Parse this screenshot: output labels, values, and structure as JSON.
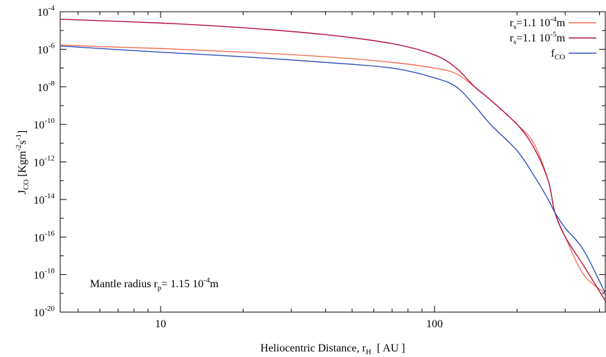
{
  "chart_data": {
    "type": "line",
    "xscale": "log",
    "yscale": "log",
    "xlim": [
      4.3,
      420
    ],
    "ylim": [
      1e-20,
      0.0001
    ],
    "xlabel": {
      "main": "Heliocentric Distance, r",
      "sub": "H",
      "tail": "  [ AU ]"
    },
    "ylabel": {
      "pre": "J",
      "sub": "CO",
      "mid": " [Kgm",
      "sup1": "-2",
      "mid2": "s",
      "sup2": "-1",
      "post": "]"
    },
    "x_ticks": [
      {
        "value": 10,
        "label": "10"
      },
      {
        "value": 100,
        "label": "100"
      }
    ],
    "y_ticks": [
      {
        "value": -20,
        "base": "10",
        "exp": "-20"
      },
      {
        "value": -18,
        "base": "10",
        "exp": "-18"
      },
      {
        "value": -16,
        "base": "10",
        "exp": "-16"
      },
      {
        "value": -14,
        "base": "10",
        "exp": "-14"
      },
      {
        "value": -12,
        "base": "10",
        "exp": "-12"
      },
      {
        "value": -10,
        "base": "10",
        "exp": "-10"
      },
      {
        "value": -8,
        "base": "10",
        "exp": "-8"
      },
      {
        "value": -6,
        "base": "10",
        "exp": "-6"
      },
      {
        "value": -4,
        "base": "10",
        "exp": "-4"
      }
    ],
    "grid": false,
    "legend_position": "top-right",
    "series": [
      {
        "label": {
          "pre": "r",
          "sub": "s",
          "mid": "=1.1 10",
          "sup": "-4",
          "post": "m"
        },
        "color": "#f07058",
        "points": [
          [
            4.3,
            1.7e-06
          ],
          [
            6,
            1.4e-06
          ],
          [
            10,
            1.1e-06
          ],
          [
            20,
            7e-07
          ],
          [
            40,
            4e-07
          ],
          [
            70,
            2e-07
          ],
          [
            100,
            1e-07
          ],
          [
            120,
            5e-08
          ],
          [
            140,
            1e-08
          ],
          [
            160,
            2e-09
          ],
          [
            200,
            1e-10
          ],
          [
            230,
            1e-11
          ],
          [
            260,
            1e-13
          ],
          [
            275,
            2e-15
          ],
          [
            300,
            1e-16
          ],
          [
            350,
            1e-18
          ],
          [
            420,
            1e-19
          ]
        ]
      },
      {
        "label": {
          "pre": "r",
          "sub": "s",
          "mid": "=1.1 10",
          "sup": "-5",
          "post": "m"
        },
        "color": "#b0103c",
        "points": [
          [
            4.3,
            4e-05
          ],
          [
            10,
            2.5e-05
          ],
          [
            20,
            1.4e-05
          ],
          [
            40,
            6e-06
          ],
          [
            70,
            2e-06
          ],
          [
            100,
            5e-07
          ],
          [
            120,
            1e-07
          ],
          [
            140,
            1e-08
          ],
          [
            160,
            2e-09
          ],
          [
            200,
            1e-10
          ],
          [
            230,
            6e-12
          ],
          [
            260,
            1e-13
          ],
          [
            275,
            2e-15
          ],
          [
            300,
            1e-16
          ],
          [
            350,
            3e-18
          ],
          [
            420,
            4e-20
          ]
        ]
      },
      {
        "label": {
          "pre": "f",
          "sub": "CO",
          "mid": "",
          "sup": "",
          "post": ""
        },
        "color": "#3050c0",
        "points": [
          [
            4.3,
            1.5e-06
          ],
          [
            10,
            7e-07
          ],
          [
            20,
            4e-07
          ],
          [
            40,
            2e-07
          ],
          [
            70,
            1e-07
          ],
          [
            100,
            3e-08
          ],
          [
            120,
            1e-08
          ],
          [
            140,
            1e-09
          ],
          [
            160,
            1e-10
          ],
          [
            200,
            4e-12
          ],
          [
            230,
            2e-13
          ],
          [
            260,
            1e-14
          ],
          [
            275,
            2e-15
          ],
          [
            300,
            3e-16
          ],
          [
            350,
            2e-17
          ],
          [
            420,
            1e-19
          ]
        ]
      }
    ],
    "annotation": {
      "pre": "Mantle radius r",
      "sub": "p",
      "mid": "= 1.15 10",
      "sup": "-4",
      "post": "m"
    }
  }
}
